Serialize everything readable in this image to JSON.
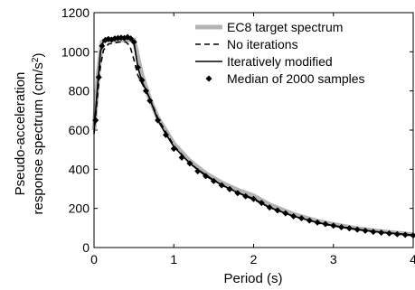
{
  "chart_data": {
    "type": "line",
    "xlabel": "Period (s)",
    "ylabel_line1": "Pseudo-acceleration",
    "ylabel_line2": "response spectrum (cm/s",
    "ylabel_sup": "2",
    "ylabel_close": ")",
    "xlim": [
      0,
      4
    ],
    "ylim": [
      0,
      1200
    ],
    "x_ticks": [
      0,
      1,
      2,
      3,
      4
    ],
    "x_tick_labels": [
      "0",
      "1",
      "2",
      "3",
      "4"
    ],
    "y_ticks": [
      0,
      200,
      400,
      600,
      800,
      1000,
      1200
    ],
    "y_tick_labels": [
      "0",
      "200",
      "400",
      "600",
      "800",
      "1000",
      "1200"
    ],
    "grid": false,
    "legend_position": "top-right",
    "series": [
      {
        "name": "EC8 target spectrum",
        "style": "thick-gray",
        "color": "#b4b4b4",
        "x": [
          0,
          0.05,
          0.1,
          0.15,
          0.2,
          0.3,
          0.4,
          0.5,
          0.6,
          0.7,
          0.8,
          1.0,
          1.2,
          1.4,
          1.6,
          1.8,
          2.0,
          2.2,
          2.5,
          2.8,
          3.0,
          3.3,
          3.6,
          4.0
        ],
        "y": [
          600,
          880,
          1050,
          1060,
          1060,
          1060,
          1060,
          1060,
          883,
          757,
          663,
          530,
          442,
          379,
          331,
          294,
          265,
          219,
          170,
          135,
          118,
          97,
          82,
          66
        ]
      },
      {
        "name": "No iterations",
        "style": "dashed",
        "color": "#000000",
        "x": [
          0,
          0.04,
          0.08,
          0.12,
          0.18,
          0.25,
          0.32,
          0.4,
          0.45,
          0.5,
          0.55,
          0.6,
          0.7,
          0.8,
          0.9,
          1.0,
          1.2,
          1.4,
          1.6,
          1.8,
          2.0,
          2.2,
          2.5,
          2.8,
          3.0,
          3.3,
          3.6,
          4.0
        ],
        "y": [
          580,
          760,
          930,
          1010,
          1040,
          1045,
          1050,
          1050,
          1030,
          960,
          880,
          840,
          760,
          660,
          590,
          520,
          430,
          370,
          320,
          280,
          245,
          205,
          160,
          125,
          110,
          92,
          78,
          62
        ]
      },
      {
        "name": "Iteratively modified",
        "style": "solid",
        "color": "#000000",
        "x": [
          0,
          0.04,
          0.08,
          0.12,
          0.16,
          0.2,
          0.25,
          0.3,
          0.35,
          0.4,
          0.45,
          0.5,
          0.55,
          0.6,
          0.7,
          0.8,
          0.9,
          1.0,
          1.2,
          1.4,
          1.6,
          1.8,
          2.0,
          2.2,
          2.5,
          2.8,
          3.0,
          3.3,
          3.6,
          4.0
        ],
        "y": [
          590,
          800,
          1000,
          1060,
          1070,
          1065,
          1070,
          1065,
          1075,
          1070,
          1075,
          1050,
          920,
          850,
          760,
          650,
          580,
          515,
          430,
          365,
          320,
          280,
          250,
          205,
          160,
          128,
          112,
          93,
          78,
          64
        ]
      },
      {
        "name": "Median of 2000 samples",
        "style": "diamond-markers",
        "color": "#000000",
        "x": [
          0.02,
          0.06,
          0.1,
          0.14,
          0.18,
          0.22,
          0.26,
          0.3,
          0.34,
          0.38,
          0.42,
          0.46,
          0.5,
          0.55,
          0.6,
          0.65,
          0.7,
          0.8,
          0.9,
          1.0,
          1.1,
          1.2,
          1.3,
          1.4,
          1.5,
          1.6,
          1.7,
          1.8,
          1.9,
          2.0,
          2.1,
          2.2,
          2.3,
          2.4,
          2.5,
          2.6,
          2.7,
          2.8,
          2.9,
          3.0,
          3.1,
          3.2,
          3.3,
          3.4,
          3.5,
          3.6,
          3.7,
          3.8,
          3.9,
          4.0
        ],
        "y": [
          650,
          870,
          1030,
          1060,
          1065,
          1062,
          1068,
          1070,
          1072,
          1070,
          1075,
          1068,
          1050,
          920,
          855,
          800,
          750,
          650,
          575,
          505,
          460,
          430,
          390,
          365,
          340,
          318,
          298,
          278,
          262,
          248,
          228,
          205,
          190,
          175,
          160,
          150,
          138,
          128,
          120,
          112,
          104,
          98,
          92,
          86,
          80,
          76,
          72,
          68,
          65,
          62
        ]
      }
    ]
  }
}
